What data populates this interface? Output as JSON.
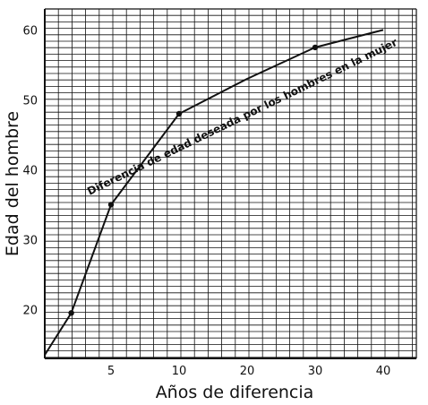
{
  "chart_data": {
    "type": "line",
    "title": "",
    "xlabel": "Años de diferencia",
    "ylabel": "Edad del hombre",
    "x_ticks": [
      "5",
      "10",
      "20",
      "30",
      "40"
    ],
    "y_ticks": [
      "20",
      "30",
      "40",
      "50",
      "60"
    ],
    "ylim": [
      13,
      63
    ],
    "grid": true,
    "annotation": "Diferencia de edad deseada por los hombres en la mujer",
    "series": [
      {
        "x": [
          0,
          2,
          5,
          10,
          20,
          30,
          40
        ],
        "y": [
          13.5,
          19.5,
          35,
          48,
          53,
          57.5,
          60
        ],
        "markers": [
          2,
          5,
          10,
          30
        ]
      }
    ],
    "colors": {
      "line": "#111111",
      "grid": "#111111",
      "background": "#ffffff"
    }
  }
}
